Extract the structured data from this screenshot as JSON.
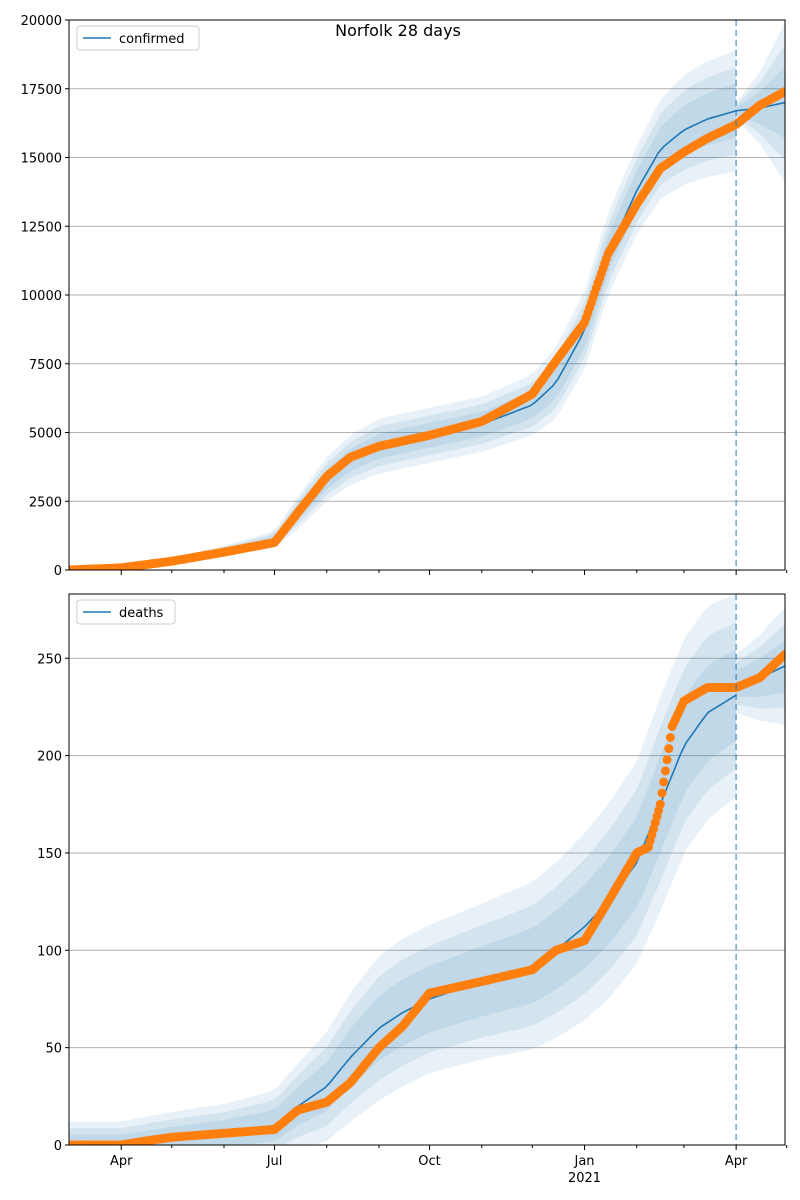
{
  "title": "Norfolk 28 days",
  "x_ticks": [
    {
      "date": "2020-04-01",
      "label": "Apr"
    },
    {
      "date": "2020-07-01",
      "label": "Jul"
    },
    {
      "date": "2020-10-01",
      "label": "Oct"
    },
    {
      "date": "2021-01-01",
      "label": "Jan",
      "sublabel": "2021"
    },
    {
      "date": "2021-04-01",
      "label": "Apr"
    }
  ],
  "x_minor_ticks": [
    "2020-05-01",
    "2020-06-01",
    "2020-08-01",
    "2020-09-01",
    "2020-11-01",
    "2020-12-01",
    "2021-02-01",
    "2021-03-01",
    "2021-05-01"
  ],
  "forecast_start": "2021-04-01",
  "colors": {
    "model": "#1f77b4",
    "observed": "#ff7f0e",
    "band": "#1f77b4",
    "grid": "#b0b0b0"
  },
  "chart_data": [
    {
      "type": "line",
      "legend": "confirmed",
      "legend_position": "top-left",
      "grid": "horizontal",
      "xlim": [
        "2020-03-01",
        "2021-04-30"
      ],
      "ylim": [
        0,
        20000
      ],
      "y_ticks": [
        0,
        2500,
        5000,
        7500,
        10000,
        12500,
        15000,
        17500,
        20000
      ],
      "model": {
        "x": [
          "2020-03-01",
          "2020-04-01",
          "2020-05-01",
          "2020-06-01",
          "2020-07-01",
          "2020-07-15",
          "2020-08-01",
          "2020-08-15",
          "2020-09-01",
          "2020-10-01",
          "2020-11-01",
          "2020-12-01",
          "2020-12-15",
          "2021-01-01",
          "2021-01-15",
          "2021-02-01",
          "2021-02-15",
          "2021-03-01",
          "2021-03-15",
          "2021-04-01"
        ],
        "y": [
          0,
          80,
          330,
          700,
          1100,
          2100,
          3300,
          4000,
          4500,
          4900,
          5300,
          6000,
          6800,
          8700,
          11500,
          13800,
          15300,
          16000,
          16400,
          16700
        ],
        "band_outer_width": [
          50,
          80,
          120,
          180,
          300,
          600,
          800,
          900,
          1000,
          1000,
          1000,
          1100,
          1300,
          1400,
          1500,
          1600,
          1800,
          2000,
          2100,
          2200
        ]
      },
      "forecast": {
        "x": [
          "2021-04-01",
          "2021-04-15",
          "2021-04-30"
        ],
        "y": [
          16700,
          16800,
          17000
        ],
        "band_outer_width": [
          300,
          1300,
          2900
        ]
      },
      "observed": {
        "x": [
          "2020-03-01",
          "2020-04-01",
          "2020-05-01",
          "2020-06-01",
          "2020-07-01",
          "2020-07-15",
          "2020-08-01",
          "2020-08-15",
          "2020-09-01",
          "2020-10-01",
          "2020-11-01",
          "2020-12-01",
          "2020-12-15",
          "2021-01-01",
          "2021-01-15",
          "2021-02-01",
          "2021-02-15",
          "2021-03-01",
          "2021-03-15",
          "2021-04-01",
          "2021-04-15",
          "2021-04-30"
        ],
        "y": [
          0,
          80,
          320,
          650,
          1000,
          2100,
          3400,
          4100,
          4500,
          4900,
          5400,
          6400,
          7600,
          9000,
          11500,
          13300,
          14600,
          15200,
          15700,
          16200,
          16900,
          17400
        ]
      }
    },
    {
      "type": "line",
      "legend": "deaths",
      "legend_position": "top-left",
      "grid": "horizontal",
      "xlim": [
        "2020-03-01",
        "2021-04-30"
      ],
      "ylim": [
        0,
        283
      ],
      "y_ticks": [
        0,
        50,
        100,
        150,
        200,
        250
      ],
      "model": {
        "x": [
          "2020-03-01",
          "2020-04-01",
          "2020-05-01",
          "2020-06-01",
          "2020-07-01",
          "2020-07-15",
          "2020-08-01",
          "2020-08-15",
          "2020-09-01",
          "2020-09-15",
          "2020-10-01",
          "2020-11-01",
          "2020-12-01",
          "2020-12-15",
          "2021-01-01",
          "2021-01-15",
          "2021-02-01",
          "2021-02-15",
          "2021-03-01",
          "2021-03-15",
          "2021-04-01"
        ],
        "y": [
          0,
          0,
          3,
          6,
          10,
          20,
          30,
          45,
          60,
          68,
          75,
          84,
          92,
          100,
          112,
          125,
          145,
          175,
          205,
          222,
          231
        ],
        "band_outer_width": [
          12,
          12,
          14,
          15,
          18,
          22,
          28,
          33,
          37,
          38,
          38,
          40,
          43,
          45,
          48,
          50,
          52,
          55,
          55,
          55,
          52
        ]
      },
      "forecast": {
        "x": [
          "2021-04-01",
          "2021-04-15",
          "2021-04-30"
        ],
        "y": [
          237,
          240,
          246
        ],
        "band_outer_width": [
          15,
          22,
          30
        ]
      },
      "observed": {
        "x": [
          "2020-03-01",
          "2020-04-01",
          "2020-04-15",
          "2020-05-01",
          "2020-06-01",
          "2020-07-01",
          "2020-07-15",
          "2020-08-01",
          "2020-08-15",
          "2020-09-01",
          "2020-09-15",
          "2020-10-01",
          "2020-11-01",
          "2020-12-01",
          "2020-12-15",
          "2021-01-01",
          "2021-01-15",
          "2021-02-01",
          "2021-02-08",
          "2021-02-15",
          "2021-02-22",
          "2021-03-01",
          "2021-03-15",
          "2021-04-01",
          "2021-04-15",
          "2021-04-30"
        ],
        "y": [
          0,
          0,
          2,
          4,
          6,
          8,
          18,
          22,
          32,
          50,
          61,
          78,
          84,
          90,
          100,
          105,
          125,
          150,
          153,
          175,
          215,
          228,
          235,
          235,
          240,
          252
        ]
      }
    }
  ]
}
